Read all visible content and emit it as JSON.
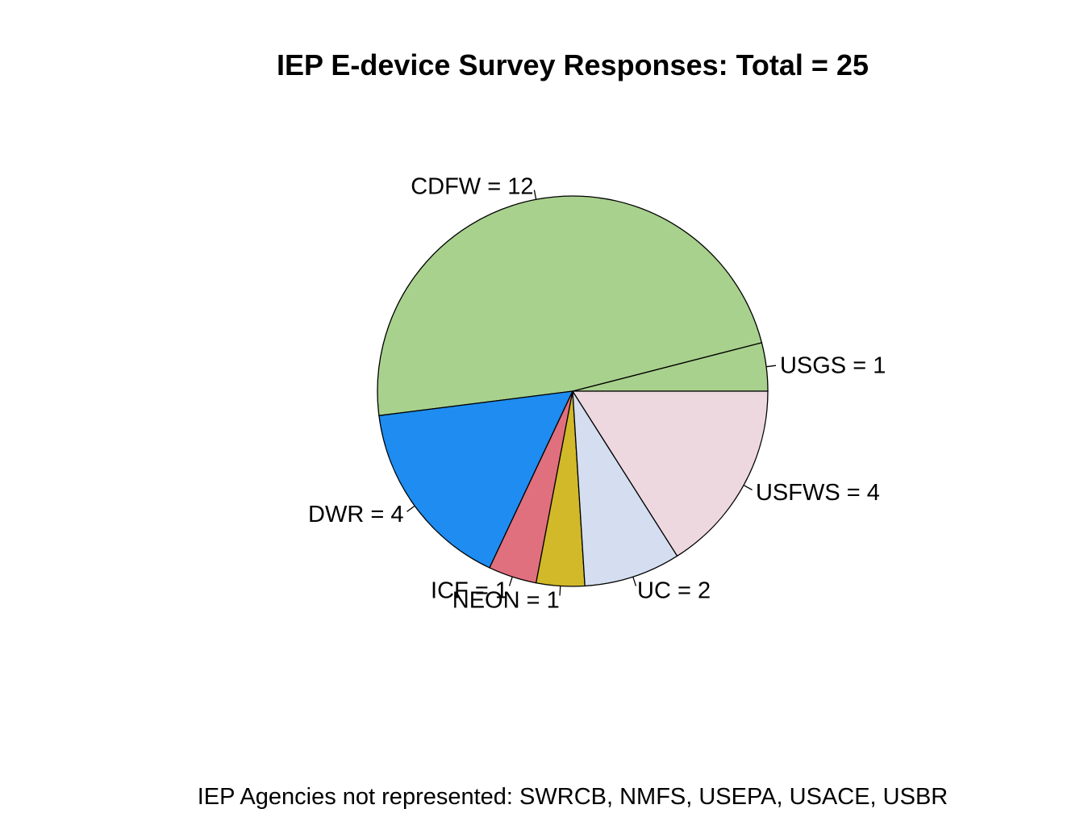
{
  "chart_data": {
    "type": "pie",
    "title": "IEP E-device Survey Responses: Total = 25",
    "slices": [
      {
        "label": "USGS = 1",
        "value": 1,
        "color": "#A8D18D"
      },
      {
        "label": "CDFW = 12",
        "value": 12,
        "color": "#A8D18D"
      },
      {
        "label": "DWR = 4",
        "value": 4,
        "color": "#1E8CF0"
      },
      {
        "label": "ICF = 1",
        "value": 1,
        "color": "#E0707E"
      },
      {
        "label": "NEON = 1",
        "value": 1,
        "color": "#D1B92A"
      },
      {
        "label": "UC = 2",
        "value": 2,
        "color": "#D4DEF0"
      },
      {
        "label": "USFWS = 4",
        "value": 4,
        "color": "#EED8E0"
      }
    ],
    "direction": "counterclockwise",
    "start": "east",
    "footnote": "IEP Agencies not represented: SWRCB, NMFS, USEPA, USACE, USBR"
  }
}
